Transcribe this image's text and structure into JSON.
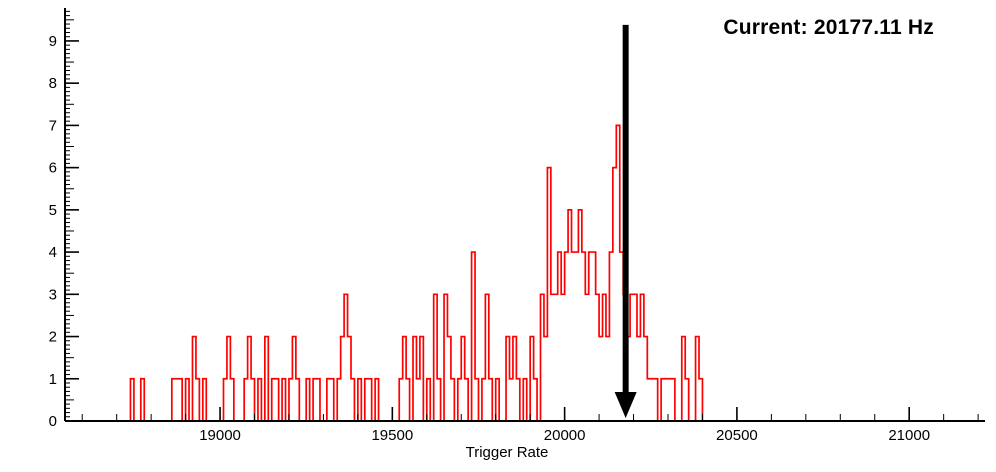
{
  "annotation": {
    "text": "Current: 20177.11 Hz"
  },
  "chart_data": {
    "type": "bar",
    "subtype": "step-histogram",
    "title": "",
    "xlabel": "Trigger Rate",
    "ylabel": "",
    "xlim": [
      18550,
      21220
    ],
    "ylim": [
      0,
      9.78
    ],
    "x_major_ticks": [
      19000,
      19500,
      20000,
      20500,
      21000
    ],
    "x_minor_step": 100,
    "y_major_step": 1,
    "y_minor_step": 0.1,
    "grid": false,
    "legend": "none",
    "series_color": "#ff0000",
    "axis_color": "#000000",
    "bin_start": 18700,
    "bin_width": 10,
    "counts": [
      0,
      0,
      0,
      0,
      1,
      0,
      0,
      1,
      0,
      0,
      0,
      0,
      0,
      0,
      0,
      0,
      1,
      1,
      1,
      0,
      1,
      0,
      2,
      1,
      0,
      1,
      0,
      0,
      0,
      0,
      0,
      1,
      2,
      1,
      0,
      0,
      0,
      1,
      2,
      1,
      0,
      1,
      0,
      2,
      0,
      1,
      1,
      0,
      1,
      0,
      1,
      2,
      1,
      0,
      0,
      1,
      0,
      1,
      1,
      0,
      0,
      1,
      1,
      0,
      1,
      2,
      3,
      2,
      1,
      0,
      1,
      0,
      1,
      1,
      0,
      1,
      0,
      0,
      0,
      0,
      0,
      0,
      1,
      2,
      1,
      0,
      2,
      1,
      2,
      0,
      1,
      0,
      3,
      1,
      0,
      3,
      2,
      1,
      0,
      1,
      2,
      1,
      0,
      4,
      1,
      0,
      1,
      3,
      1,
      0,
      1,
      0,
      0,
      2,
      1,
      2,
      1,
      0,
      1,
      0,
      2,
      1,
      0,
      3,
      2,
      6,
      3,
      3,
      4,
      3,
      4,
      5,
      4,
      4,
      5,
      4,
      3,
      4,
      4,
      3,
      2,
      3,
      2,
      4,
      6,
      7,
      4,
      3,
      2,
      3,
      3,
      2,
      3,
      2,
      1,
      1,
      1,
      0,
      1,
      1,
      1,
      1,
      0,
      0,
      2,
      1,
      0,
      0,
      2,
      1,
      0,
      0,
      0,
      0,
      0,
      0
    ],
    "marker": {
      "type": "down-arrow",
      "x": 20177.11,
      "y_top": 9.38,
      "y_tip": 0.07,
      "color": "#000000"
    }
  }
}
